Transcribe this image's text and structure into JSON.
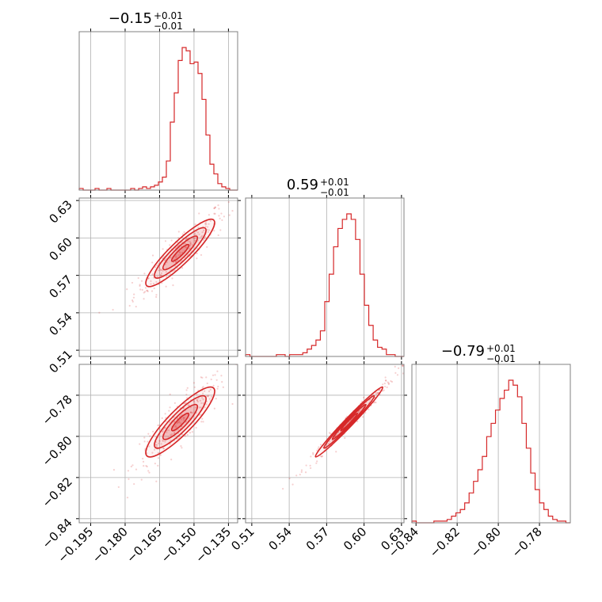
{
  "chart_data": {
    "type": "corner",
    "color": "#d62728",
    "grid": true,
    "parameters": [
      {
        "title_value": "−0.15",
        "title_plus": "+0.01",
        "title_minus": "−0.01",
        "range": [
          -0.2,
          -0.131
        ],
        "ticks": [
          -0.195,
          -0.18,
          -0.165,
          -0.15,
          -0.135
        ],
        "tick_labels": [
          "−0.195",
          "−0.180",
          "−0.165",
          "−0.150",
          "−0.135"
        ]
      },
      {
        "title_value": "0.59",
        "title_plus": "+0.01",
        "title_minus": "−0.01",
        "range": [
          0.505,
          0.632
        ],
        "ticks": [
          0.51,
          0.54,
          0.57,
          0.6,
          0.63
        ],
        "tick_labels": [
          "0.51",
          "0.54",
          "0.57",
          "0.60",
          "0.63"
        ]
      },
      {
        "title_value": "−0.79",
        "title_plus": "+0.01",
        "title_minus": "−0.01",
        "range": [
          -0.842,
          -0.765
        ],
        "ticks": [
          -0.84,
          -0.82,
          -0.8,
          -0.78
        ],
        "tick_labels": [
          "−0.84",
          "−0.82",
          "−0.80",
          "−0.78"
        ]
      }
    ],
    "histograms": [
      {
        "bins": [
          -0.2,
          -0.131
        ],
        "counts": [
          1,
          0,
          0,
          0,
          1,
          0,
          0,
          1,
          0,
          0,
          0,
          0,
          0,
          1,
          0,
          1,
          2,
          1,
          2,
          3,
          5,
          8,
          18,
          42,
          60,
          80,
          88,
          86,
          78,
          79,
          72,
          56,
          34,
          16,
          10,
          4,
          2,
          1,
          0,
          0
        ]
      },
      {
        "bins": [
          0.505,
          0.632
        ],
        "counts": [
          1,
          0,
          0,
          0,
          0,
          0,
          0,
          1,
          1,
          0,
          1,
          1,
          1,
          2,
          4,
          6,
          9,
          14,
          30,
          45,
          60,
          70,
          75,
          78,
          75,
          64,
          45,
          28,
          17,
          9,
          5,
          4,
          1,
          1,
          0,
          0
        ]
      },
      {
        "bins": [
          -0.842,
          -0.765
        ],
        "counts": [
          1,
          0,
          0,
          0,
          0,
          1,
          1,
          1,
          2,
          4,
          6,
          8,
          12,
          18,
          25,
          32,
          40,
          52,
          60,
          68,
          75,
          80,
          86,
          83,
          76,
          60,
          45,
          30,
          20,
          12,
          8,
          4,
          2,
          1,
          1,
          0
        ]
      }
    ],
    "pairs": [
      {
        "xi": 0,
        "yi": 1,
        "center": [
          -0.156,
          0.588
        ],
        "sd": [
          0.0075,
          0.0135
        ],
        "rho": 0.9
      },
      {
        "xi": 0,
        "yi": 2,
        "center": [
          -0.156,
          -0.793
        ],
        "sd": [
          0.0075,
          0.0085
        ],
        "rho": 0.88
      },
      {
        "xi": 1,
        "yi": 2,
        "center": [
          0.588,
          -0.793
        ],
        "sd": [
          0.0135,
          0.0085
        ],
        "rho": 0.985
      }
    ]
  }
}
